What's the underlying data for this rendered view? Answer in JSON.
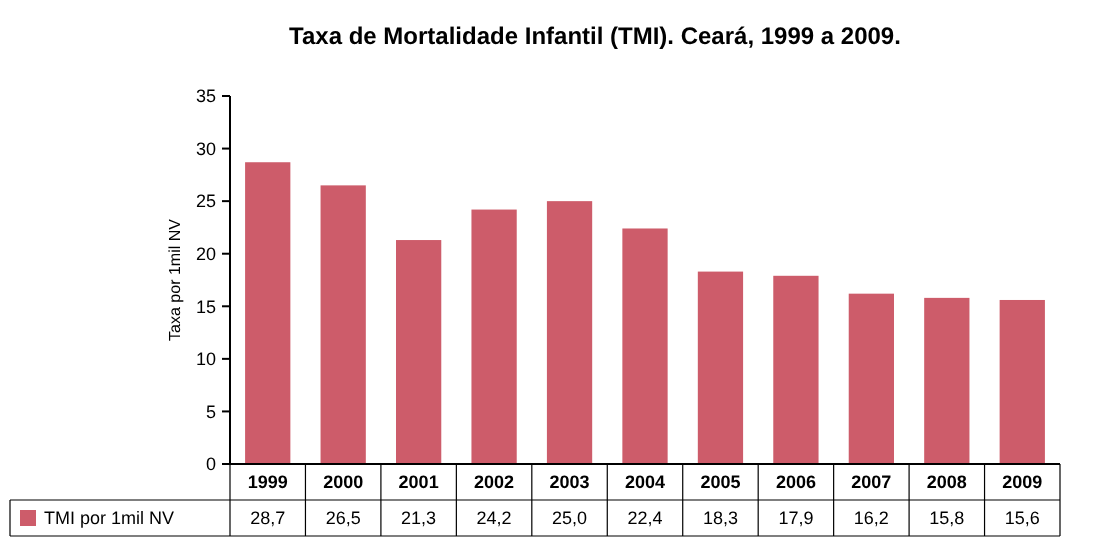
{
  "chart_data": {
    "type": "bar",
    "title": "Taxa de Mortalidade Infantil (TMI). Ceará, 1999 a 2009.",
    "ylabel": "Taxa por 1mil NV",
    "categories": [
      "1999",
      "2000",
      "2001",
      "2002",
      "2003",
      "2004",
      "2005",
      "2006",
      "2007",
      "2008",
      "2009"
    ],
    "series": [
      {
        "name": "TMI por 1mil NV",
        "color": "#cd5c6a",
        "values": [
          28.7,
          26.5,
          21.3,
          24.2,
          25.0,
          22.4,
          18.3,
          17.9,
          16.2,
          15.8,
          15.6
        ],
        "value_labels": [
          "28,7",
          "26,5",
          "21,3",
          "24,2",
          "25,0",
          "22,4",
          "18,3",
          "17,9",
          "16,2",
          "15,8",
          "15,6"
        ]
      }
    ],
    "ylim": [
      0,
      35
    ],
    "yticks": [
      0,
      5,
      10,
      15,
      20,
      25,
      30,
      35
    ],
    "legend": "bottom left"
  }
}
